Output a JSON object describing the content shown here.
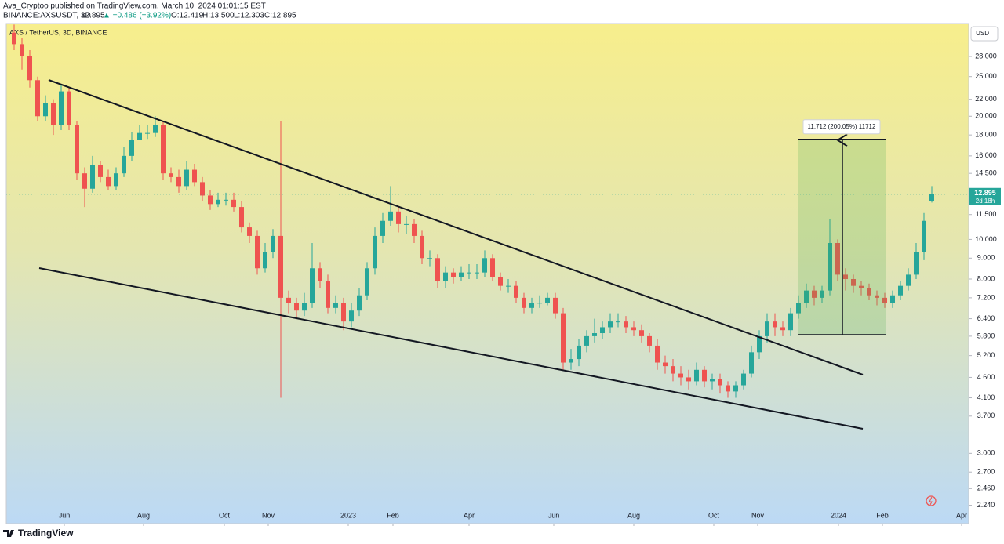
{
  "header": {
    "publisher": "Ava_Cryptoo published on TradingView.com, March 10, 2024 01:01:15 EST",
    "symbol": "BINANCE:AXSUSDT, 3D",
    "quote": [
      "12.895",
      "▲ +0.486 (+3.92%)",
      "O:12.419",
      "H:13.500",
      "L:12.303",
      "C:12.895"
    ]
  },
  "footer": {
    "brand": "TradingView"
  },
  "chart_data": {
    "type": "candlestick",
    "title": "AXS / TetherUS, 3D, BINANCE",
    "axis_unit": "USDT",
    "countdown": "2d 18h",
    "up_color": "#26a69a",
    "down_color": "#ef5350",
    "log_scale": true,
    "open": [
      32,
      30,
      28,
      24.5,
      20,
      21.5,
      19,
      23,
      19,
      14.5,
      13.3,
      15.2,
      14.2,
      13.5,
      14.5,
      16,
      17.5,
      18.2,
      18.2,
      19,
      14.5,
      14.2,
      13.5,
      14.8,
      13.8,
      12.8,
      12.2,
      12.5,
      12.5,
      12,
      10.7,
      10.2,
      8.5,
      9.3,
      10.2,
      7.2,
      7,
      6.7,
      7,
      8.5,
      7.9,
      6.8,
      7,
      6.3,
      6.7,
      7.3,
      8.5,
      10.2,
      11.1,
      11.7,
      10.9,
      10.9,
      10.2,
      9,
      9,
      7.9,
      8.3,
      8.1,
      8.3,
      8.3,
      8.3,
      9,
      8.1,
      7.7,
      7.7,
      7.2,
      6.8,
      7,
      7,
      7.2,
      6.6,
      5,
      5.1,
      5.5,
      5.8,
      5.9,
      6.1,
      6.3,
      6.3,
      6.1,
      6,
      5.8,
      5.5,
      5,
      4.9,
      4.7,
      4.6,
      4.5,
      4.8,
      4.5,
      4.55,
      4.4,
      4.25,
      4.4,
      4.7,
      5.3,
      5.8,
      6.3,
      6.1,
      6,
      6.6,
      7,
      7.5,
      7.2,
      7.5,
      9.8,
      8.2,
      8,
      7.7,
      7.6,
      7.3,
      7.2,
      7,
      7.3,
      7.7,
      8.2,
      9.3,
      12.419
    ],
    "high": [
      33.5,
      31,
      29,
      25,
      22.5,
      22,
      24,
      23.5,
      19.5,
      15,
      16,
      15.5,
      14.8,
      15,
      16.8,
      18.3,
      19,
      19,
      20,
      19.5,
      15,
      14.8,
      15.5,
      15.3,
      14.2,
      13.2,
      13,
      13,
      13,
      12.4,
      11,
      10.5,
      9.8,
      10.6,
      19.5,
      7.5,
      7.2,
      7.4,
      9.8,
      8.8,
      8.2,
      7.3,
      7.2,
      7,
      7.6,
      8.8,
      10.7,
      11.6,
      13.5,
      12,
      11.4,
      11.2,
      10.5,
      9.4,
      9.2,
      8.6,
      8.5,
      8.6,
      8.7,
      8.7,
      9.4,
      9.2,
      8.3,
      8,
      7.9,
      7.4,
      7.2,
      7.3,
      7.4,
      7.4,
      6.8,
      5.4,
      5.7,
      6,
      6.4,
      6.3,
      6.6,
      6.6,
      6.5,
      6.3,
      6.2,
      5.9,
      5.7,
      5.2,
      5.1,
      4.9,
      4.8,
      5,
      4.9,
      4.7,
      4.7,
      4.5,
      4.5,
      4.8,
      5.5,
      6,
      6.6,
      6.6,
      6.3,
      6.8,
      7.3,
      7.8,
      7.7,
      7.7,
      11.2,
      10,
      8.5,
      8.2,
      7.9,
      7.8,
      7.5,
      7.4,
      7.5,
      7.9,
      8.5,
      9.8,
      11.6,
      13.5
    ],
    "low": [
      29,
      26,
      23.5,
      19.5,
      19.5,
      18,
      18.5,
      18.5,
      14,
      12,
      13,
      13.8,
      13.2,
      13.2,
      14.2,
      15.5,
      17.5,
      17.6,
      17.8,
      14,
      13.8,
      13,
      13.2,
      13.5,
      12.4,
      11.8,
      12,
      12.1,
      11.7,
      10.4,
      9.8,
      8.2,
      8.3,
      9,
      4.1,
      6.6,
      6.4,
      6.5,
      6.8,
      7.6,
      6.6,
      6.6,
      6,
      6.1,
      6.5,
      7.1,
      8.2,
      9.8,
      10.8,
      10.4,
      10.3,
      9.8,
      8.7,
      8.6,
      7.6,
      7.6,
      7.8,
      7.9,
      8,
      8,
      8.1,
      7.9,
      7.5,
      7.4,
      7,
      6.6,
      6.6,
      6.8,
      6.9,
      6.4,
      4.8,
      4.8,
      4.9,
      5.3,
      5.6,
      5.7,
      5.9,
      6.1,
      5.9,
      5.8,
      5.6,
      5.3,
      4.8,
      4.7,
      4.5,
      4.4,
      4.3,
      4.4,
      4.35,
      4.3,
      4.2,
      4.1,
      4.1,
      4.3,
      4.6,
      5.1,
      5.6,
      5.8,
      5.8,
      5.8,
      6.4,
      6.8,
      6.9,
      7,
      7.3,
      7.9,
      7.5,
      7.4,
      7.3,
      7.1,
      6.9,
      6.8,
      6.8,
      7.1,
      7.5,
      8,
      8.9,
      12.303
    ],
    "close": [
      30,
      28,
      24.5,
      20,
      21.5,
      19,
      23,
      19,
      14.5,
      13.3,
      15.2,
      14.2,
      13.5,
      14.5,
      16,
      17.5,
      18.2,
      18.2,
      19,
      14.5,
      14.2,
      13.5,
      14.8,
      13.8,
      12.8,
      12.2,
      12.5,
      12.5,
      12,
      10.7,
      10.2,
      8.5,
      9.3,
      10.2,
      7.2,
      7,
      6.7,
      7,
      8.5,
      7.9,
      6.8,
      7,
      6.3,
      6.7,
      7.3,
      8.5,
      10.2,
      11.1,
      11.7,
      10.9,
      10.9,
      10.2,
      9,
      9,
      7.9,
      8.3,
      8.1,
      8.3,
      8.3,
      8.3,
      9,
      8.1,
      7.7,
      7.7,
      7.2,
      6.8,
      7,
      7,
      7.2,
      6.6,
      5,
      5.1,
      5.5,
      5.8,
      5.9,
      6.1,
      6.3,
      6.3,
      6.1,
      6,
      5.8,
      5.5,
      5,
      4.9,
      4.7,
      4.6,
      4.5,
      4.8,
      4.5,
      4.55,
      4.4,
      4.25,
      4.4,
      4.7,
      5.3,
      5.8,
      6.3,
      6.1,
      6,
      6.6,
      7,
      7.5,
      7.2,
      7.5,
      9.8,
      8.2,
      8,
      7.7,
      7.6,
      7.3,
      7.2,
      7,
      7.3,
      7.7,
      8.2,
      9.3,
      11.1,
      12.895
    ],
    "xlim": [
      -1,
      121.7
    ],
    "xticks": [
      {
        "value": 6.4,
        "label": "Jun"
      },
      {
        "value": 16.5,
        "label": "Aug"
      },
      {
        "value": 26.8,
        "label": "Oct"
      },
      {
        "value": 32.4,
        "label": "Nov"
      },
      {
        "value": 42.6,
        "label": "2023"
      },
      {
        "value": 48.3,
        "label": "Feb"
      },
      {
        "value": 58,
        "label": "Apr"
      },
      {
        "value": 68.8,
        "label": "Jun"
      },
      {
        "value": 79,
        "label": "Aug"
      },
      {
        "value": 89.2,
        "label": "Oct"
      },
      {
        "value": 94.8,
        "label": "Nov"
      },
      {
        "value": 105.1,
        "label": "2024"
      },
      {
        "value": 110.7,
        "label": "Feb"
      },
      {
        "value": 120.8,
        "label": "Apr"
      }
    ],
    "ylim": [
      2.02,
      33.7
    ],
    "yticks": [
      {
        "value": 28,
        "label": "28.000"
      },
      {
        "value": 25,
        "label": "25.000"
      },
      {
        "value": 22,
        "label": "22.000"
      },
      {
        "value": 20,
        "label": "20.000"
      },
      {
        "value": 18,
        "label": "18.000"
      },
      {
        "value": 16,
        "label": "16.000"
      },
      {
        "value": 14.5,
        "label": "14.500"
      },
      {
        "value": 11.5,
        "label": "11.500"
      },
      {
        "value": 10,
        "label": "10.000"
      },
      {
        "value": 9,
        "label": "9.000"
      },
      {
        "value": 8,
        "label": "8.000"
      },
      {
        "value": 7.2,
        "label": "7.200"
      },
      {
        "value": 6.4,
        "label": "6.400"
      },
      {
        "value": 5.8,
        "label": "5.800"
      },
      {
        "value": 5.2,
        "label": "5.200"
      },
      {
        "value": 4.6,
        "label": "4.600"
      },
      {
        "value": 4.1,
        "label": "4.100"
      },
      {
        "value": 3.7,
        "label": "3.700"
      },
      {
        "value": 3,
        "label": "3.000"
      },
      {
        "value": 2.7,
        "label": "2.700"
      },
      {
        "value": 2.46,
        "label": "2.460"
      },
      {
        "value": 2.24,
        "label": "2.240"
      }
    ],
    "measure": {
      "low": 5.85,
      "high": 17.56,
      "label": "11.712 (200.05%) 11712"
    }
  }
}
